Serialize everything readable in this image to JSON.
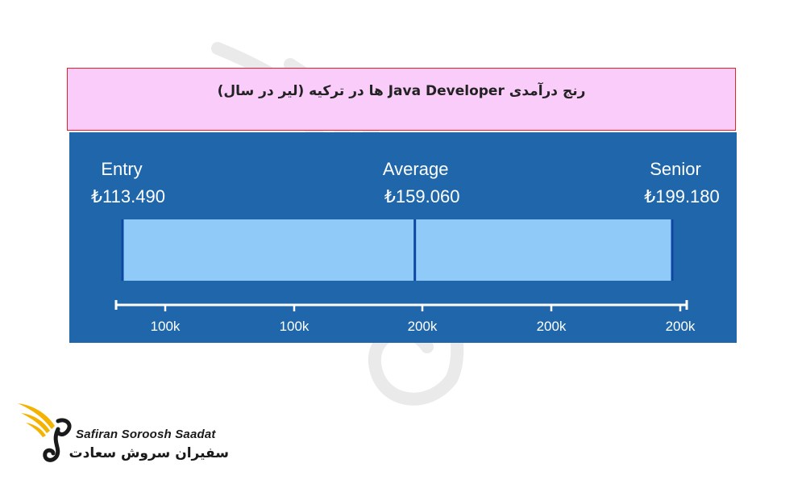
{
  "title": "رنج درآمدی Java Developer ها در ترکیه (لیر در سال)",
  "chart_data": {
    "type": "bar",
    "categories": [
      "Entry",
      "Average",
      "Senior"
    ],
    "values": [
      113490,
      159060,
      199180
    ],
    "value_labels": [
      "₺113.490",
      "₺159.060",
      "₺199.180"
    ],
    "tick_labels": [
      "100k",
      "100k",
      "200k",
      "200k",
      "200k"
    ],
    "colors": {
      "panel": "#1f67aa",
      "bar_fill": "#90caf9",
      "bar_edge": "#0d47a1",
      "text": "#ffffff"
    }
  },
  "brand": {
    "name_en": "Safiran Soroosh Saadat",
    "name_fa": "سفیران سروش سعادت",
    "logo_icon": "winged-bird-logo-icon",
    "colors": {
      "gold": "#f5b301",
      "dark": "#1a1a1a"
    }
  }
}
